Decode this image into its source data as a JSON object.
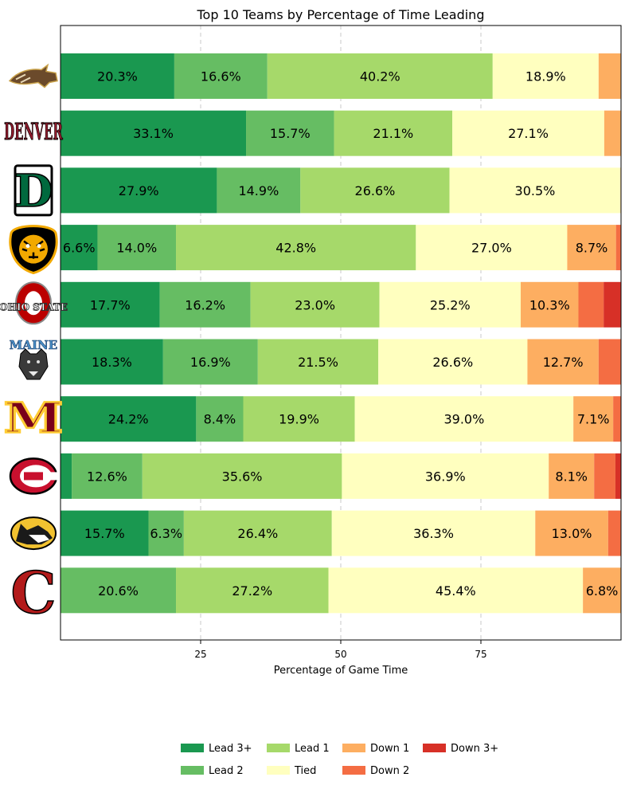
{
  "chart_data": {
    "type": "bar",
    "orientation": "horizontal-stacked",
    "title": "Top 10 Teams by Percentage of Time Leading",
    "xlabel": "Percentage of Game Time",
    "ylabel": "",
    "xlim": [
      0,
      100
    ],
    "xticks": [
      25,
      50,
      75
    ],
    "grid": "x dashed",
    "legend_position": "bottom-center",
    "categories": [
      {
        "logo": "bronco-head-logo"
      },
      {
        "logo": "denver-wordmark-logo"
      },
      {
        "logo": "d-block-logo"
      },
      {
        "logo": "tiger-head-logo"
      },
      {
        "logo": "ohio-state-logo"
      },
      {
        "logo": "maine-bear-logo"
      },
      {
        "logo": "block-m-logo"
      },
      {
        "logo": "scsu-logo"
      },
      {
        "logo": "husky-head-logo"
      },
      {
        "logo": "block-c-logo"
      }
    ],
    "series": [
      {
        "name": "Lead 3+",
        "color": "#1a9850",
        "values": [
          20.3,
          33.1,
          27.9,
          6.6,
          17.7,
          18.3,
          24.2,
          2.0,
          15.7,
          0.0
        ]
      },
      {
        "name": "Lead 2",
        "color": "#66bd63",
        "values": [
          16.6,
          15.7,
          14.9,
          14.0,
          16.2,
          16.9,
          8.4,
          12.6,
          6.3,
          20.6
        ]
      },
      {
        "name": "Lead 1",
        "color": "#a6d96a",
        "values": [
          40.2,
          21.1,
          26.6,
          42.8,
          23.0,
          21.5,
          19.9,
          35.6,
          26.4,
          27.2
        ]
      },
      {
        "name": "Tied",
        "color": "#ffffbf",
        "values": [
          18.9,
          27.1,
          30.5,
          27.0,
          25.2,
          26.6,
          39.0,
          36.9,
          36.3,
          45.4
        ]
      },
      {
        "name": "Down 1",
        "color": "#fdae61",
        "values": [
          4.0,
          3.0,
          0.1,
          8.7,
          10.3,
          12.7,
          7.1,
          8.1,
          13.0,
          6.8
        ]
      },
      {
        "name": "Down 2",
        "color": "#f46d43",
        "values": [
          0.0,
          0.0,
          0.0,
          1.0,
          4.5,
          4.0,
          1.4,
          3.8,
          2.3,
          0.0
        ]
      },
      {
        "name": "Down 3+",
        "color": "#d73027",
        "values": [
          0.0,
          0.0,
          0.0,
          0.0,
          3.1,
          0.0,
          0.0,
          1.0,
          0.0,
          0.0
        ]
      }
    ],
    "data_labels": [
      [
        "20.3%",
        "16.6%",
        "40.2%",
        "18.9%",
        "",
        "",
        ""
      ],
      [
        "33.1%",
        "15.7%",
        "21.1%",
        "27.1%",
        "",
        "",
        ""
      ],
      [
        "27.9%",
        "14.9%",
        "26.6%",
        "30.5%",
        "",
        "",
        ""
      ],
      [
        "6.6%",
        "14.0%",
        "42.8%",
        "27.0%",
        "8.7%",
        "",
        ""
      ],
      [
        "17.7%",
        "16.2%",
        "23.0%",
        "25.2%",
        "10.3%",
        "",
        ""
      ],
      [
        "18.3%",
        "16.9%",
        "21.5%",
        "26.6%",
        "12.7%",
        "",
        ""
      ],
      [
        "24.2%",
        "8.4%",
        "19.9%",
        "39.0%",
        "7.1%",
        "",
        ""
      ],
      [
        "",
        "12.6%",
        "35.6%",
        "36.9%",
        "8.1%",
        "",
        ""
      ],
      [
        "15.7%",
        "6.3%",
        "26.4%",
        "36.3%",
        "13.0%",
        "",
        ""
      ],
      [
        "",
        "20.6%",
        "27.2%",
        "45.4%",
        "6.8%",
        "",
        ""
      ]
    ],
    "logo_text": {
      "denver": "DENVER",
      "d": "D",
      "ohio": "OHIO STATE",
      "maine": "MAINE",
      "m": "M",
      "c": "C"
    }
  }
}
